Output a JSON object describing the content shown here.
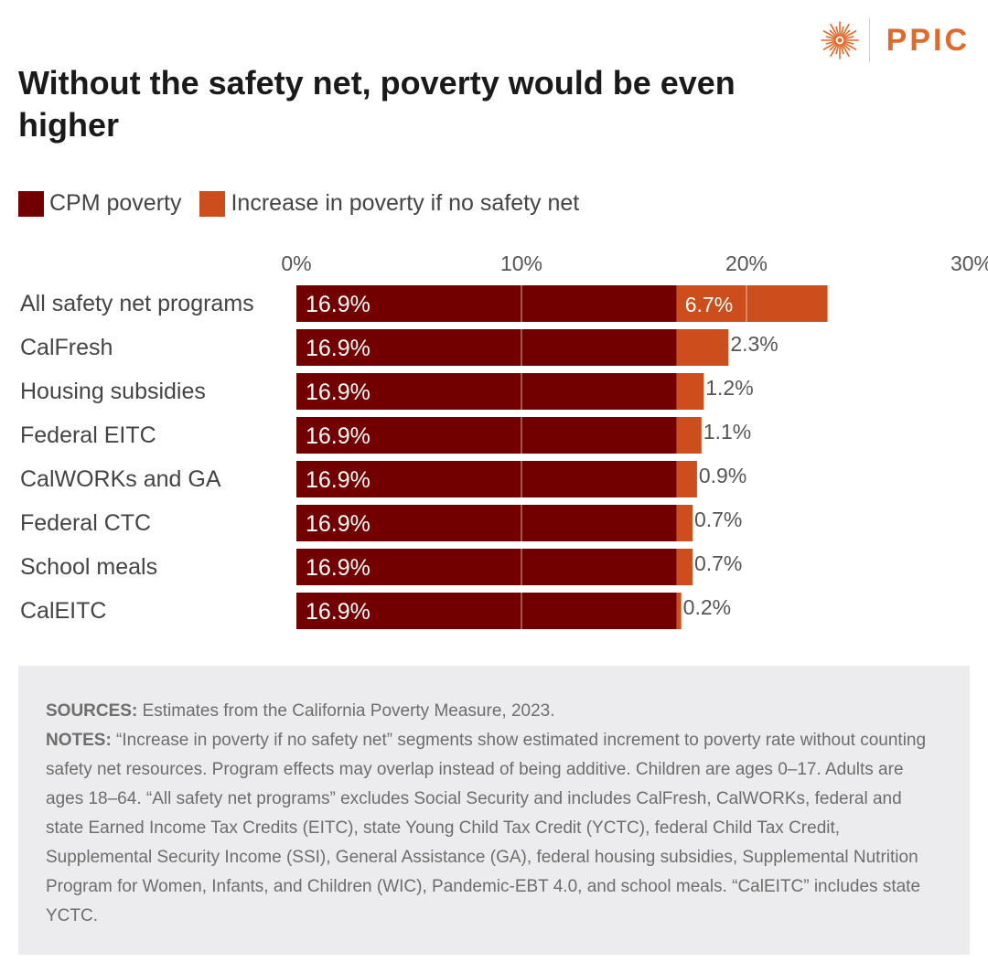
{
  "logo": {
    "text": "PPIC",
    "icon": "sunburst-icon",
    "color": "#E06A2C"
  },
  "title": "Without the safety net, poverty would be even higher",
  "legend": [
    {
      "label": "CPM poverty",
      "color": "#720000"
    },
    {
      "label": "Increase in poverty if no safety net",
      "color": "#CC4E1C"
    }
  ],
  "chart_data": {
    "type": "bar",
    "orientation": "horizontal",
    "stacked": true,
    "categories": [
      "All safety net programs",
      "CalFresh",
      "Housing subsidies",
      "Federal EITC",
      "CalWORKs and GA",
      "Federal CTC",
      "School meals",
      "CalEITC"
    ],
    "series": [
      {
        "name": "CPM poverty",
        "color": "#720000",
        "values": [
          16.9,
          16.9,
          16.9,
          16.9,
          16.9,
          16.9,
          16.9,
          16.9
        ]
      },
      {
        "name": "Increase in poverty if no safety net",
        "color": "#CC4E1C",
        "values": [
          6.7,
          2.3,
          1.2,
          1.1,
          0.9,
          0.7,
          0.7,
          0.2
        ]
      }
    ],
    "xlim": [
      0,
      30
    ],
    "xticks": [
      0,
      10,
      20,
      30
    ],
    "tick_suffix": "%",
    "axis_position": "top",
    "grid": true,
    "legend_position": "top-left"
  },
  "notes": {
    "sources_label": "SOURCES:",
    "sources_text": " Estimates from the California Poverty Measure, 2023.",
    "notes_label": "NOTES:",
    "notes_text": " “Increase in poverty if no safety net” segments show estimated increment to poverty rate without counting safety net resources. Program effects may overlap instead of being additive. Children are ages 0–17. Adults are ages 18–64. “All safety net programs” excludes Social Security and includes CalFresh, CalWORKs, federal and state Earned Income Tax Credits (EITC), state Young Child Tax Credit (YCTC), federal Child Tax Credit, Supplemental Security Income (SSI), General Assistance (GA), federal housing subsidies, Supplemental Nutrition Program for Women, Infants, and Children (WIC), Pandemic-EBT 4.0, and school meals. “CalEITC” includes state YCTC."
  }
}
